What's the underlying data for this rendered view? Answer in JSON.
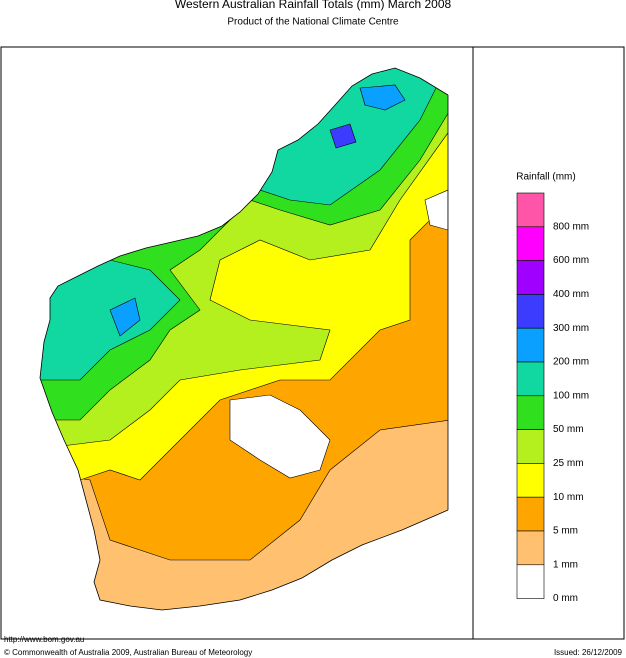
{
  "header": {
    "title": "Western Australian Rainfall Totals (mm) March 2008",
    "subtitle": "Product of the National Climate Centre"
  },
  "legend": {
    "title": "Rainfall (mm)",
    "items": [
      {
        "color": "#ff55a8",
        "label": "800 mm"
      },
      {
        "color": "#ff00ff",
        "label": "600 mm"
      },
      {
        "color": "#a000ff",
        "label": "400 mm"
      },
      {
        "color": "#3c3cff",
        "label": "300 mm"
      },
      {
        "color": "#0aa0ff",
        "label": "200 mm"
      },
      {
        "color": "#10d8a0",
        "label": "100 mm"
      },
      {
        "color": "#30e01e",
        "label": "50 mm"
      },
      {
        "color": "#b4f01e",
        "label": "25 mm"
      },
      {
        "color": "#ffff00",
        "label": "10 mm"
      },
      {
        "color": "#ffa500",
        "label": "5 mm"
      },
      {
        "color": "#ffc070",
        "label": "1 mm"
      },
      {
        "color": "#ffffff",
        "label": "0 mm"
      }
    ]
  },
  "footer": {
    "url": "http://www.bom.gov.au",
    "copyright": "© Commonwealth of Australia 2009, Australian Bureau of Meteorology",
    "issued": "Issued: 26/12/2009"
  }
}
